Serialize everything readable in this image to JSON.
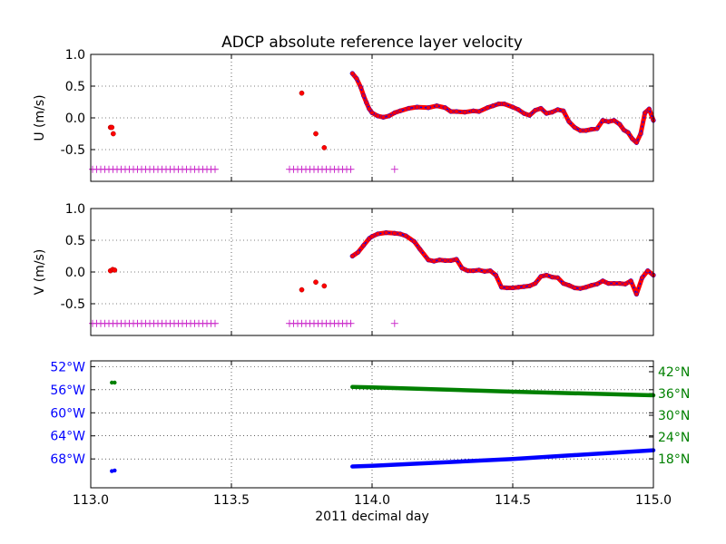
{
  "title": "ADCP absolute reference layer velocity",
  "chart_data": [
    {
      "type": "scatter",
      "panel": "u",
      "ylabel": "U (m/s)",
      "xlim": [
        113.0,
        115.0
      ],
      "ylim": [
        -1.0,
        1.0
      ],
      "xticks": [
        "113.0",
        "113.5",
        "114.0",
        "114.5",
        "115.0"
      ],
      "xtick_values": [
        113.0,
        113.5,
        114.0,
        114.5,
        115.0
      ],
      "yticks": [
        "1.0",
        "0.5",
        "0.0",
        "-0.5"
      ],
      "ytick_values": [
        1.0,
        0.5,
        0.0,
        -0.5
      ],
      "grid": true,
      "series": [
        {
          "kind": "line",
          "color": "#0000ff",
          "x": [
            113.93,
            113.945,
            113.96,
            113.97,
            113.98,
            113.99,
            114.0,
            114.02,
            114.04,
            114.06,
            114.08,
            114.1,
            114.13,
            114.16,
            114.2,
            114.23,
            114.26,
            114.28,
            114.3,
            114.33,
            114.36,
            114.38,
            114.41,
            114.43,
            114.45,
            114.47,
            114.5,
            114.52,
            114.54,
            114.56,
            114.58,
            114.6,
            114.62,
            114.64,
            114.66,
            114.68,
            114.7,
            114.72,
            114.74,
            114.76,
            114.78,
            114.8,
            114.82,
            114.84,
            114.86,
            114.88,
            114.895,
            114.91,
            114.925,
            114.94,
            114.955,
            114.97,
            114.985,
            115.0
          ],
          "y": [
            0.7,
            0.62,
            0.48,
            0.35,
            0.24,
            0.14,
            0.08,
            0.03,
            0.01,
            0.03,
            0.08,
            0.11,
            0.15,
            0.17,
            0.16,
            0.19,
            0.16,
            0.1,
            0.1,
            0.09,
            0.11,
            0.1,
            0.16,
            0.19,
            0.22,
            0.22,
            0.17,
            0.13,
            0.07,
            0.04,
            0.12,
            0.15,
            0.07,
            0.09,
            0.13,
            0.11,
            -0.06,
            -0.15,
            -0.2,
            -0.2,
            -0.18,
            -0.17,
            -0.04,
            -0.06,
            -0.04,
            -0.1,
            -0.19,
            -0.23,
            -0.33,
            -0.39,
            -0.25,
            0.08,
            0.14,
            -0.04
          ]
        },
        {
          "kind": "dots",
          "color": "#ff0000",
          "x": [
            113.07,
            113.075,
            113.08,
            113.75,
            113.8,
            113.83
          ],
          "y": [
            -0.15,
            -0.15,
            -0.25,
            0.39,
            -0.25,
            -0.47
          ]
        },
        {
          "kind": "flags",
          "color": "#cc33cc",
          "y": -0.81,
          "ranges": [
            [
              113.0,
              113.45
            ],
            [
              113.7,
              113.93
            ]
          ],
          "x": [
            114.08
          ]
        }
      ]
    },
    {
      "type": "scatter",
      "panel": "v",
      "ylabel": "V (m/s)",
      "xlim": [
        113.0,
        115.0
      ],
      "ylim": [
        -1.0,
        1.0
      ],
      "xticks": [
        "113.0",
        "113.5",
        "114.0",
        "114.5",
        "115.0"
      ],
      "xtick_values": [
        113.0,
        113.5,
        114.0,
        114.5,
        115.0
      ],
      "yticks": [
        "1.0",
        "0.5",
        "0.0",
        "-0.5"
      ],
      "ytick_values": [
        1.0,
        0.5,
        0.0,
        -0.5
      ],
      "grid": true,
      "series": [
        {
          "kind": "line",
          "color": "#0000ff",
          "x": [
            113.93,
            113.95,
            113.97,
            113.99,
            114.0,
            114.02,
            114.05,
            114.08,
            114.1,
            114.12,
            114.15,
            114.17,
            114.2,
            114.22,
            114.24,
            114.26,
            114.28,
            114.3,
            114.32,
            114.34,
            114.36,
            114.38,
            114.4,
            114.42,
            114.44,
            114.46,
            114.48,
            114.5,
            114.52,
            114.54,
            114.56,
            114.58,
            114.6,
            114.62,
            114.64,
            114.66,
            114.68,
            114.7,
            114.72,
            114.74,
            114.76,
            114.78,
            114.8,
            114.82,
            114.84,
            114.86,
            114.88,
            114.9,
            114.92,
            114.94,
            114.96,
            114.98,
            115.0
          ],
          "y": [
            0.25,
            0.31,
            0.42,
            0.53,
            0.56,
            0.6,
            0.62,
            0.61,
            0.6,
            0.57,
            0.48,
            0.36,
            0.19,
            0.17,
            0.19,
            0.18,
            0.18,
            0.2,
            0.06,
            0.02,
            0.02,
            0.03,
            0.01,
            0.02,
            -0.05,
            -0.24,
            -0.25,
            -0.25,
            -0.24,
            -0.23,
            -0.22,
            -0.18,
            -0.07,
            -0.05,
            -0.08,
            -0.09,
            -0.18,
            -0.21,
            -0.25,
            -0.26,
            -0.24,
            -0.21,
            -0.19,
            -0.14,
            -0.18,
            -0.18,
            -0.18,
            -0.19,
            -0.14,
            -0.35,
            -0.09,
            0.02,
            -0.05
          ]
        },
        {
          "kind": "dots",
          "color": "#ff0000",
          "x": [
            113.07,
            113.078,
            113.085,
            113.75,
            113.8,
            113.83
          ],
          "y": [
            0.02,
            0.04,
            0.03,
            -0.28,
            -0.16,
            -0.22
          ]
        },
        {
          "kind": "flags",
          "color": "#cc33cc",
          "y": -0.81,
          "ranges": [
            [
              113.0,
              113.45
            ],
            [
              113.7,
              113.93
            ]
          ],
          "x": [
            114.08
          ]
        }
      ]
    },
    {
      "type": "scatter",
      "panel": "position",
      "xlabel": "2011 decimal day",
      "xlim": [
        113.0,
        115.0
      ],
      "xticks": [
        "113.0",
        "113.5",
        "114.0",
        "114.5",
        "115.0"
      ],
      "xtick_values": [
        113.0,
        113.5,
        114.0,
        114.5,
        115.0
      ],
      "ylim_left": [
        -73.0,
        -51.0
      ],
      "left_yticks": [
        "52°W",
        "56°W",
        "60°W",
        "64°W",
        "68°W"
      ],
      "left_ytick_values": [
        -52,
        -56,
        -60,
        -64,
        -68
      ],
      "left_tick_color": "#0000ff",
      "ylim_right": [
        10.0,
        45.0
      ],
      "right_yticks": [
        "42°N",
        "36°N",
        "30°N",
        "24°N",
        "18°N"
      ],
      "right_ytick_values": [
        42,
        36,
        30,
        24,
        18
      ],
      "right_tick_color": "#008000",
      "grid": true,
      "series": [
        {
          "kind": "track",
          "axis": "left",
          "color": "#0000ff",
          "x": [
            113.075,
            113.085,
            113.93,
            114.0,
            114.5,
            115.0
          ],
          "y": [
            -70.1,
            -70.0,
            -69.3,
            -69.2,
            -68.0,
            -66.5
          ]
        },
        {
          "kind": "track",
          "axis": "right",
          "color": "#008000",
          "x": [
            113.075,
            113.085,
            113.93,
            114.0,
            114.5,
            115.0
          ],
          "y": [
            39.0,
            39.0,
            37.8,
            37.7,
            36.5,
            35.5
          ]
        }
      ]
    }
  ]
}
